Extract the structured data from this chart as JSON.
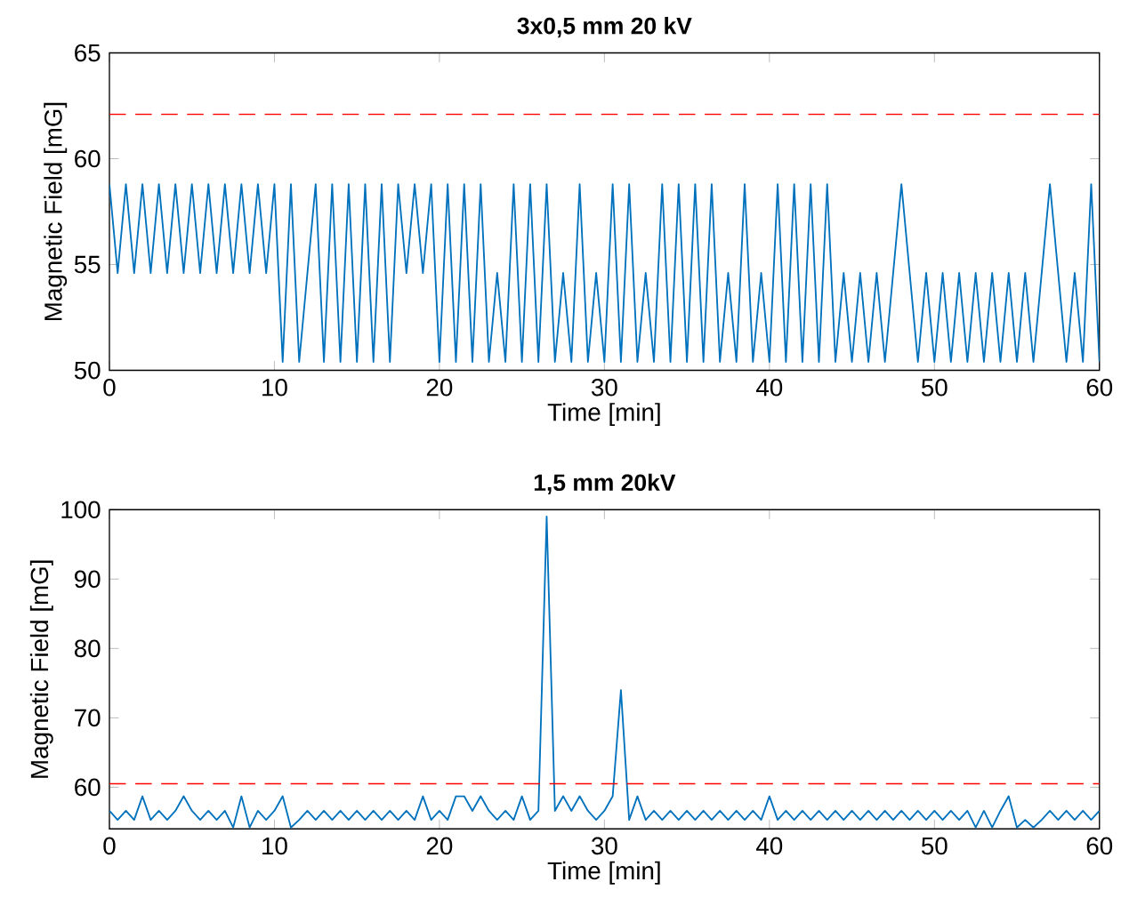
{
  "chart_data": [
    {
      "type": "line",
      "title": "3x0,5 mm 20 kV",
      "xlabel": "Time [min]",
      "ylabel": "Magnetic Field [mG]",
      "x": [
        0,
        0.5,
        1,
        1.5,
        2,
        2.5,
        3,
        3.5,
        4,
        4.5,
        5,
        5.5,
        6,
        6.5,
        7,
        7.5,
        8,
        8.5,
        9,
        9.5,
        10,
        10.5,
        11,
        11.5,
        12,
        12.5,
        13,
        13.5,
        14,
        14.5,
        15,
        15.5,
        16,
        16.5,
        17,
        17.5,
        18,
        18.5,
        19,
        19.5,
        20,
        20.5,
        21,
        21.5,
        22,
        22.5,
        23,
        23.5,
        24,
        24.5,
        25,
        25.5,
        26,
        26.5,
        27,
        27.5,
        28,
        28.5,
        29,
        29.5,
        30,
        30.5,
        31,
        31.5,
        32,
        32.5,
        33,
        33.5,
        34,
        34.5,
        35,
        35.5,
        36,
        36.5,
        37,
        37.5,
        38,
        38.5,
        39,
        39.5,
        40,
        40.5,
        41,
        41.5,
        42,
        42.5,
        43,
        43.5,
        44,
        44.5,
        45,
        45.5,
        46,
        46.5,
        47,
        47.5,
        48,
        48.5,
        49,
        49.5,
        50,
        50.5,
        51,
        51.5,
        52,
        52.5,
        53,
        53.5,
        54,
        54.5,
        55,
        55.5,
        56,
        56.5,
        57,
        57.5,
        58,
        58.5,
        59,
        59.5,
        60
      ],
      "series": [
        {
          "color": "#0072bd",
          "values": [
            58.8,
            54.6,
            58.8,
            54.6,
            58.8,
            54.6,
            58.8,
            54.6,
            58.8,
            54.6,
            58.8,
            54.6,
            58.8,
            54.6,
            58.8,
            54.6,
            58.8,
            54.6,
            58.8,
            54.6,
            58.8,
            50.4,
            58.8,
            50.4,
            54.6,
            58.8,
            50.4,
            58.8,
            50.4,
            58.8,
            50.4,
            58.8,
            50.4,
            58.8,
            50.4,
            58.8,
            54.6,
            58.8,
            54.6,
            58.8,
            50.4,
            58.8,
            50.4,
            58.8,
            50.4,
            58.8,
            50.4,
            54.6,
            50.4,
            58.8,
            50.4,
            58.8,
            50.4,
            58.8,
            50.4,
            54.6,
            50.4,
            58.8,
            50.4,
            54.6,
            50.4,
            58.8,
            50.4,
            58.8,
            50.4,
            54.6,
            50.4,
            58.8,
            50.4,
            58.8,
            50.4,
            58.8,
            50.4,
            58.8,
            50.4,
            54.6,
            50.4,
            58.8,
            50.4,
            54.6,
            50.4,
            58.8,
            50.4,
            58.8,
            50.4,
            58.8,
            50.4,
            58.8,
            50.4,
            54.6,
            50.4,
            54.6,
            50.4,
            54.6,
            50.4,
            54.6,
            58.8,
            54.6,
            50.4,
            54.6,
            50.4,
            54.6,
            50.4,
            54.6,
            50.4,
            54.6,
            50.4,
            54.6,
            50.4,
            54.6,
            50.4,
            54.6,
            50.4,
            54.6,
            58.8,
            54.6,
            50.4,
            54.6,
            50.4,
            58.8,
            50.4
          ]
        }
      ],
      "xlim": [
        0,
        60
      ],
      "ylim": [
        50,
        65
      ],
      "xticks": [
        0,
        10,
        20,
        30,
        40,
        50,
        60
      ],
      "yticks": [
        50,
        55,
        60,
        65
      ],
      "ref_lines": [
        {
          "axis": "y",
          "value": 62.1,
          "color": "#ff0000",
          "line_style": "dashed"
        }
      ]
    },
    {
      "type": "line",
      "title": "1,5 mm 20kV",
      "xlabel": "Time [min]",
      "ylabel": "Magnetic Field [mG]",
      "x": [
        0,
        0.5,
        1,
        1.5,
        2,
        2.5,
        3,
        3.5,
        4,
        4.5,
        5,
        5.5,
        6,
        6.5,
        7,
        7.5,
        8,
        8.5,
        9,
        9.5,
        10,
        10.5,
        11,
        11.5,
        12,
        12.5,
        13,
        13.5,
        14,
        14.5,
        15,
        15.5,
        16,
        16.5,
        17,
        17.5,
        18,
        18.5,
        19,
        19.5,
        20,
        20.5,
        21,
        21.5,
        22,
        22.5,
        23,
        23.5,
        24,
        24.5,
        25,
        25.5,
        26,
        26.5,
        27,
        27.5,
        28,
        28.5,
        29,
        29.5,
        30,
        30.5,
        31,
        31.5,
        32,
        32.5,
        33,
        33.5,
        34,
        34.5,
        35,
        35.5,
        36,
        36.5,
        37,
        37.5,
        38,
        38.5,
        39,
        39.5,
        40,
        40.5,
        41,
        41.5,
        42,
        42.5,
        43,
        43.5,
        44,
        44.5,
        45,
        45.5,
        46,
        46.5,
        47,
        47.5,
        48,
        48.5,
        49,
        49.5,
        50,
        50.5,
        51,
        51.5,
        52,
        52.5,
        53,
        53.5,
        54,
        54.5,
        55,
        55.5,
        56,
        56.5,
        57,
        57.5,
        58,
        58.5,
        59,
        59.5,
        60
      ],
      "series": [
        {
          "color": "#0072bd",
          "values": [
            56.6,
            55.3,
            56.6,
            55.3,
            58.7,
            55.3,
            56.6,
            55.3,
            56.6,
            58.7,
            56.6,
            55.3,
            56.6,
            55.3,
            56.6,
            54.2,
            58.7,
            54.2,
            56.6,
            55.3,
            56.6,
            58.7,
            54.2,
            55.3,
            56.6,
            55.3,
            56.6,
            55.3,
            56.6,
            55.3,
            56.6,
            55.3,
            56.6,
            55.3,
            56.6,
            55.3,
            56.6,
            55.3,
            58.7,
            55.3,
            56.6,
            55.3,
            58.7,
            58.7,
            56.6,
            58.7,
            56.6,
            55.3,
            56.6,
            55.3,
            58.7,
            55.3,
            56.6,
            99,
            56.6,
            58.7,
            56.6,
            58.7,
            56.6,
            55.3,
            56.6,
            58.7,
            74,
            55.3,
            58.7,
            55.3,
            56.6,
            55.3,
            56.6,
            55.3,
            56.6,
            55.3,
            56.6,
            55.3,
            56.6,
            55.3,
            56.6,
            55.3,
            56.6,
            55.3,
            58.7,
            55.3,
            56.6,
            55.3,
            56.6,
            55.3,
            56.6,
            55.3,
            56.6,
            55.3,
            56.6,
            55.3,
            56.6,
            55.3,
            56.6,
            55.3,
            56.6,
            55.3,
            56.6,
            55.3,
            56.6,
            55.3,
            56.6,
            55.3,
            56.6,
            54.2,
            56.6,
            54.2,
            56.6,
            58.7,
            54.2,
            55.3,
            54.2,
            55.3,
            56.6,
            55.3,
            56.6,
            55.3,
            56.6,
            55.3,
            56.6
          ]
        }
      ],
      "xlim": [
        0,
        60
      ],
      "ylim": [
        54,
        100
      ],
      "xticks": [
        0,
        10,
        20,
        30,
        40,
        50,
        60
      ],
      "yticks": [
        60,
        70,
        80,
        90,
        100
      ],
      "ref_lines": [
        {
          "axis": "y",
          "value": 60.5,
          "color": "#ff0000",
          "line_style": "dashed"
        }
      ]
    }
  ]
}
